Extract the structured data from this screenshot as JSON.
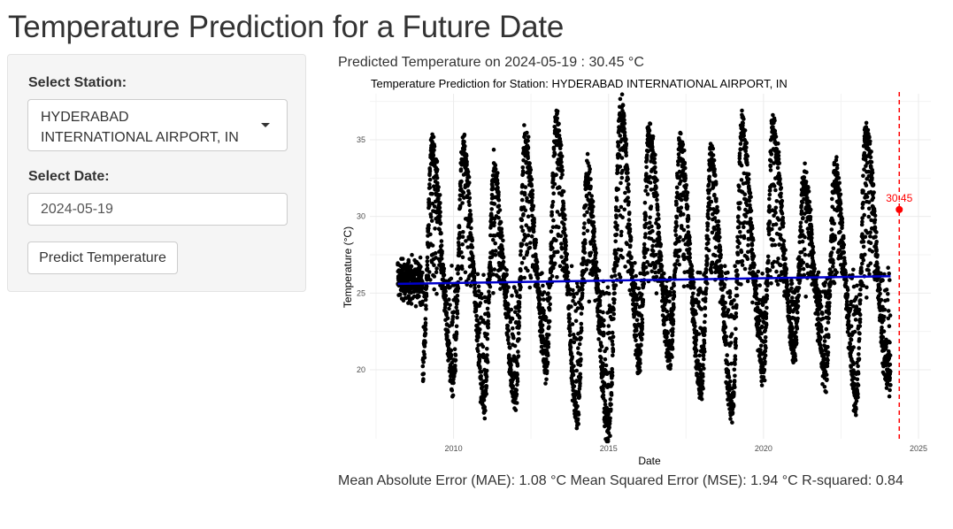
{
  "page": {
    "title": "Temperature Prediction for a Future Date"
  },
  "sidebar": {
    "station_label": "Select Station:",
    "station_value": "HYDERABAD INTERNATIONAL AIRPORT, IN",
    "date_label": "Select Date:",
    "date_value": "2024-05-19",
    "predict_button": "Predict Temperature"
  },
  "main": {
    "prediction_text": "Predicted Temperature on 2024-05-19 : 30.45 °C",
    "metrics_text": "Mean Absolute Error (MAE): 1.08 °C Mean Squared Error (MSE): 1.94 °C R-squared: 0.84"
  },
  "chart_data": {
    "type": "scatter",
    "title": "Temperature Prediction for Station: HYDERABAD INTERNATIONAL AIRPORT, IN",
    "xlabel": "Date",
    "ylabel": "Temperature (°C)",
    "x_ticks": [
      "2010",
      "2015",
      "2020",
      "2025"
    ],
    "y_ticks": [
      "20",
      "25",
      "30",
      "35"
    ],
    "xlim": [
      2007.3,
      2025.4
    ],
    "ylim": [
      15.5,
      38.0
    ],
    "grid": true,
    "observed_range_years": [
      2008.2,
      2024.1
    ],
    "seasonal_pattern": {
      "peaks": [
        {
          "year": 2009.3,
          "value": 34.4
        },
        {
          "year": 2010.3,
          "value": 34.5
        },
        {
          "year": 2011.3,
          "value": 32.9
        },
        {
          "year": 2012.3,
          "value": 34.8
        },
        {
          "year": 2013.3,
          "value": 36.2
        },
        {
          "year": 2014.3,
          "value": 32.7
        },
        {
          "year": 2015.4,
          "value": 37.0
        },
        {
          "year": 2016.3,
          "value": 35.5
        },
        {
          "year": 2017.3,
          "value": 34.7
        },
        {
          "year": 2018.3,
          "value": 33.8
        },
        {
          "year": 2019.3,
          "value": 35.8
        },
        {
          "year": 2020.3,
          "value": 35.7
        },
        {
          "year": 2021.3,
          "value": 32.2
        },
        {
          "year": 2022.3,
          "value": 33.0
        },
        {
          "year": 2023.3,
          "value": 35.4
        }
      ],
      "troughs": [
        {
          "year": 2009.0,
          "value": 19.8
        },
        {
          "year": 2010.0,
          "value": 19.2
        },
        {
          "year": 2011.0,
          "value": 18.0
        },
        {
          "year": 2012.0,
          "value": 18.0
        },
        {
          "year": 2013.0,
          "value": 20.3
        },
        {
          "year": 2014.0,
          "value": 16.9
        },
        {
          "year": 2015.0,
          "value": 16.1
        },
        {
          "year": 2016.0,
          "value": 20.5
        },
        {
          "year": 2017.0,
          "value": 20.8
        },
        {
          "year": 2018.0,
          "value": 18.6
        },
        {
          "year": 2019.0,
          "value": 17.4
        },
        {
          "year": 2020.0,
          "value": 20.0
        },
        {
          "year": 2021.0,
          "value": 21.3
        },
        {
          "year": 2022.0,
          "value": 19.8
        },
        {
          "year": 2023.0,
          "value": 18.3
        },
        {
          "year": 2024.0,
          "value": 19.8
        }
      ]
    },
    "trend_line": {
      "x": [
        2008.2,
        2024.1
      ],
      "y": [
        25.6,
        26.1
      ],
      "color": "#0000cc"
    },
    "prediction": {
      "x": 2024.38,
      "y": 30.45,
      "label": "30.45",
      "color": "#ff0000"
    },
    "vline_x": 2024.38,
    "point_color": "#000000"
  }
}
